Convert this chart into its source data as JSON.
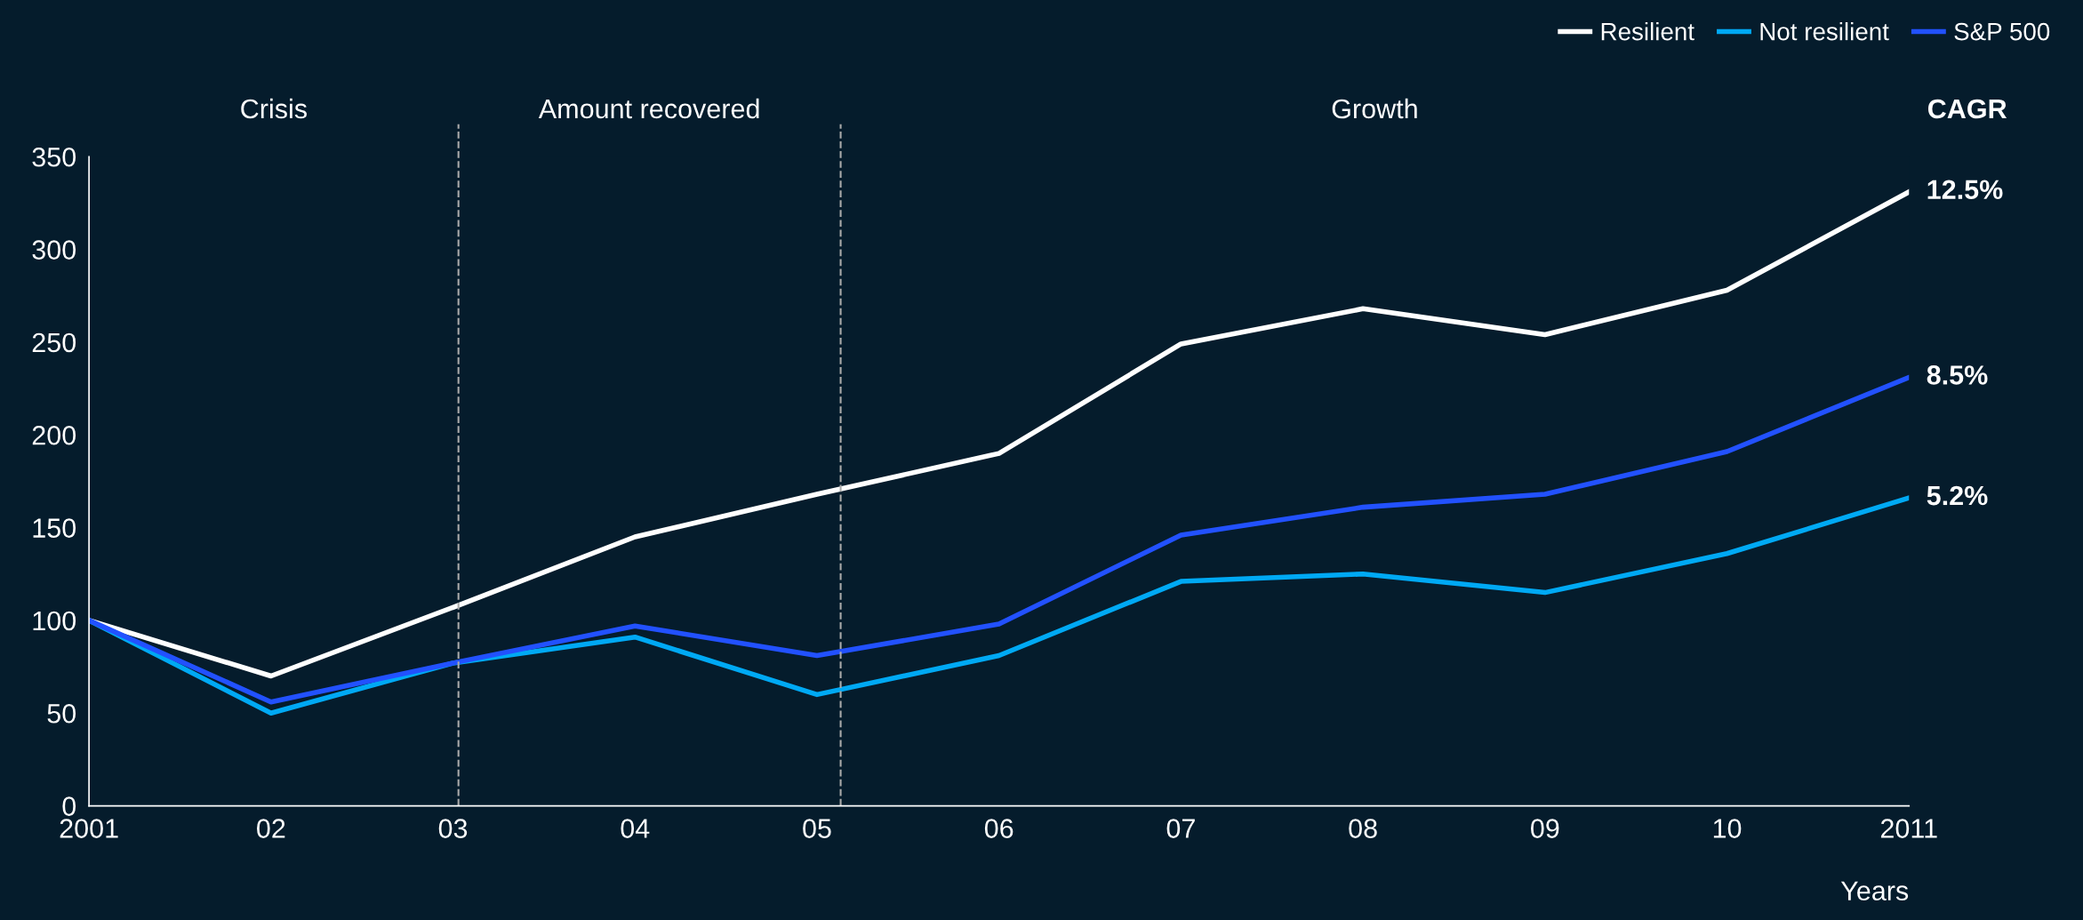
{
  "chart_data": {
    "type": "line",
    "xlabel": "Years",
    "x": [
      2001,
      2002,
      2003,
      2004,
      2005,
      2006,
      2007,
      2008,
      2009,
      2010,
      2011
    ],
    "series": [
      {
        "name": "Resilient",
        "color": "#ffffff",
        "values": [
          100,
          70,
          107,
          145,
          168,
          190,
          249,
          268,
          254,
          278,
          331
        ]
      },
      {
        "name": "Not resilient",
        "color": "#00a9f4",
        "values": [
          100,
          50,
          77,
          91,
          60,
          81,
          121,
          125,
          115,
          136,
          166
        ]
      },
      {
        "name": "S&P 500",
        "color": "#2251ff",
        "values": [
          100,
          56,
          77,
          97,
          81,
          98,
          146,
          161,
          168,
          191,
          231
        ]
      }
    ],
    "xlim": [
      2001,
      2011
    ],
    "ylim": [
      0,
      350
    ],
    "xticks": [
      2001,
      {
        "value": 2002,
        "label": "02"
      },
      {
        "value": 2003,
        "label": "03"
      },
      {
        "value": 2004,
        "label": "04"
      },
      {
        "value": 2005,
        "label": "05"
      },
      {
        "value": 2006,
        "label": "06"
      },
      {
        "value": 2007,
        "label": "07"
      },
      {
        "value": 2008,
        "label": "08"
      },
      {
        "value": 2009,
        "label": "09"
      },
      {
        "value": 2010,
        "label": "10"
      },
      2011
    ],
    "yticks": [
      0,
      50,
      100,
      150,
      200,
      250,
      300,
      350
    ],
    "ref_lines": [
      {
        "axis": "x",
        "value": 2003.03,
        "color": "#aaaaaa",
        "line_style": "dashed"
      },
      {
        "axis": "x",
        "value": 2005.13,
        "color": "#aaaaaa",
        "line_style": "dashed"
      }
    ],
    "annotations": [
      "Crisis",
      "Amount recovered",
      "Growth",
      "CAGR",
      "12.5%",
      "8.5%",
      "5.2%"
    ],
    "grid": false,
    "legend": "top right",
    "marker": "none",
    "line_style": "solid"
  }
}
